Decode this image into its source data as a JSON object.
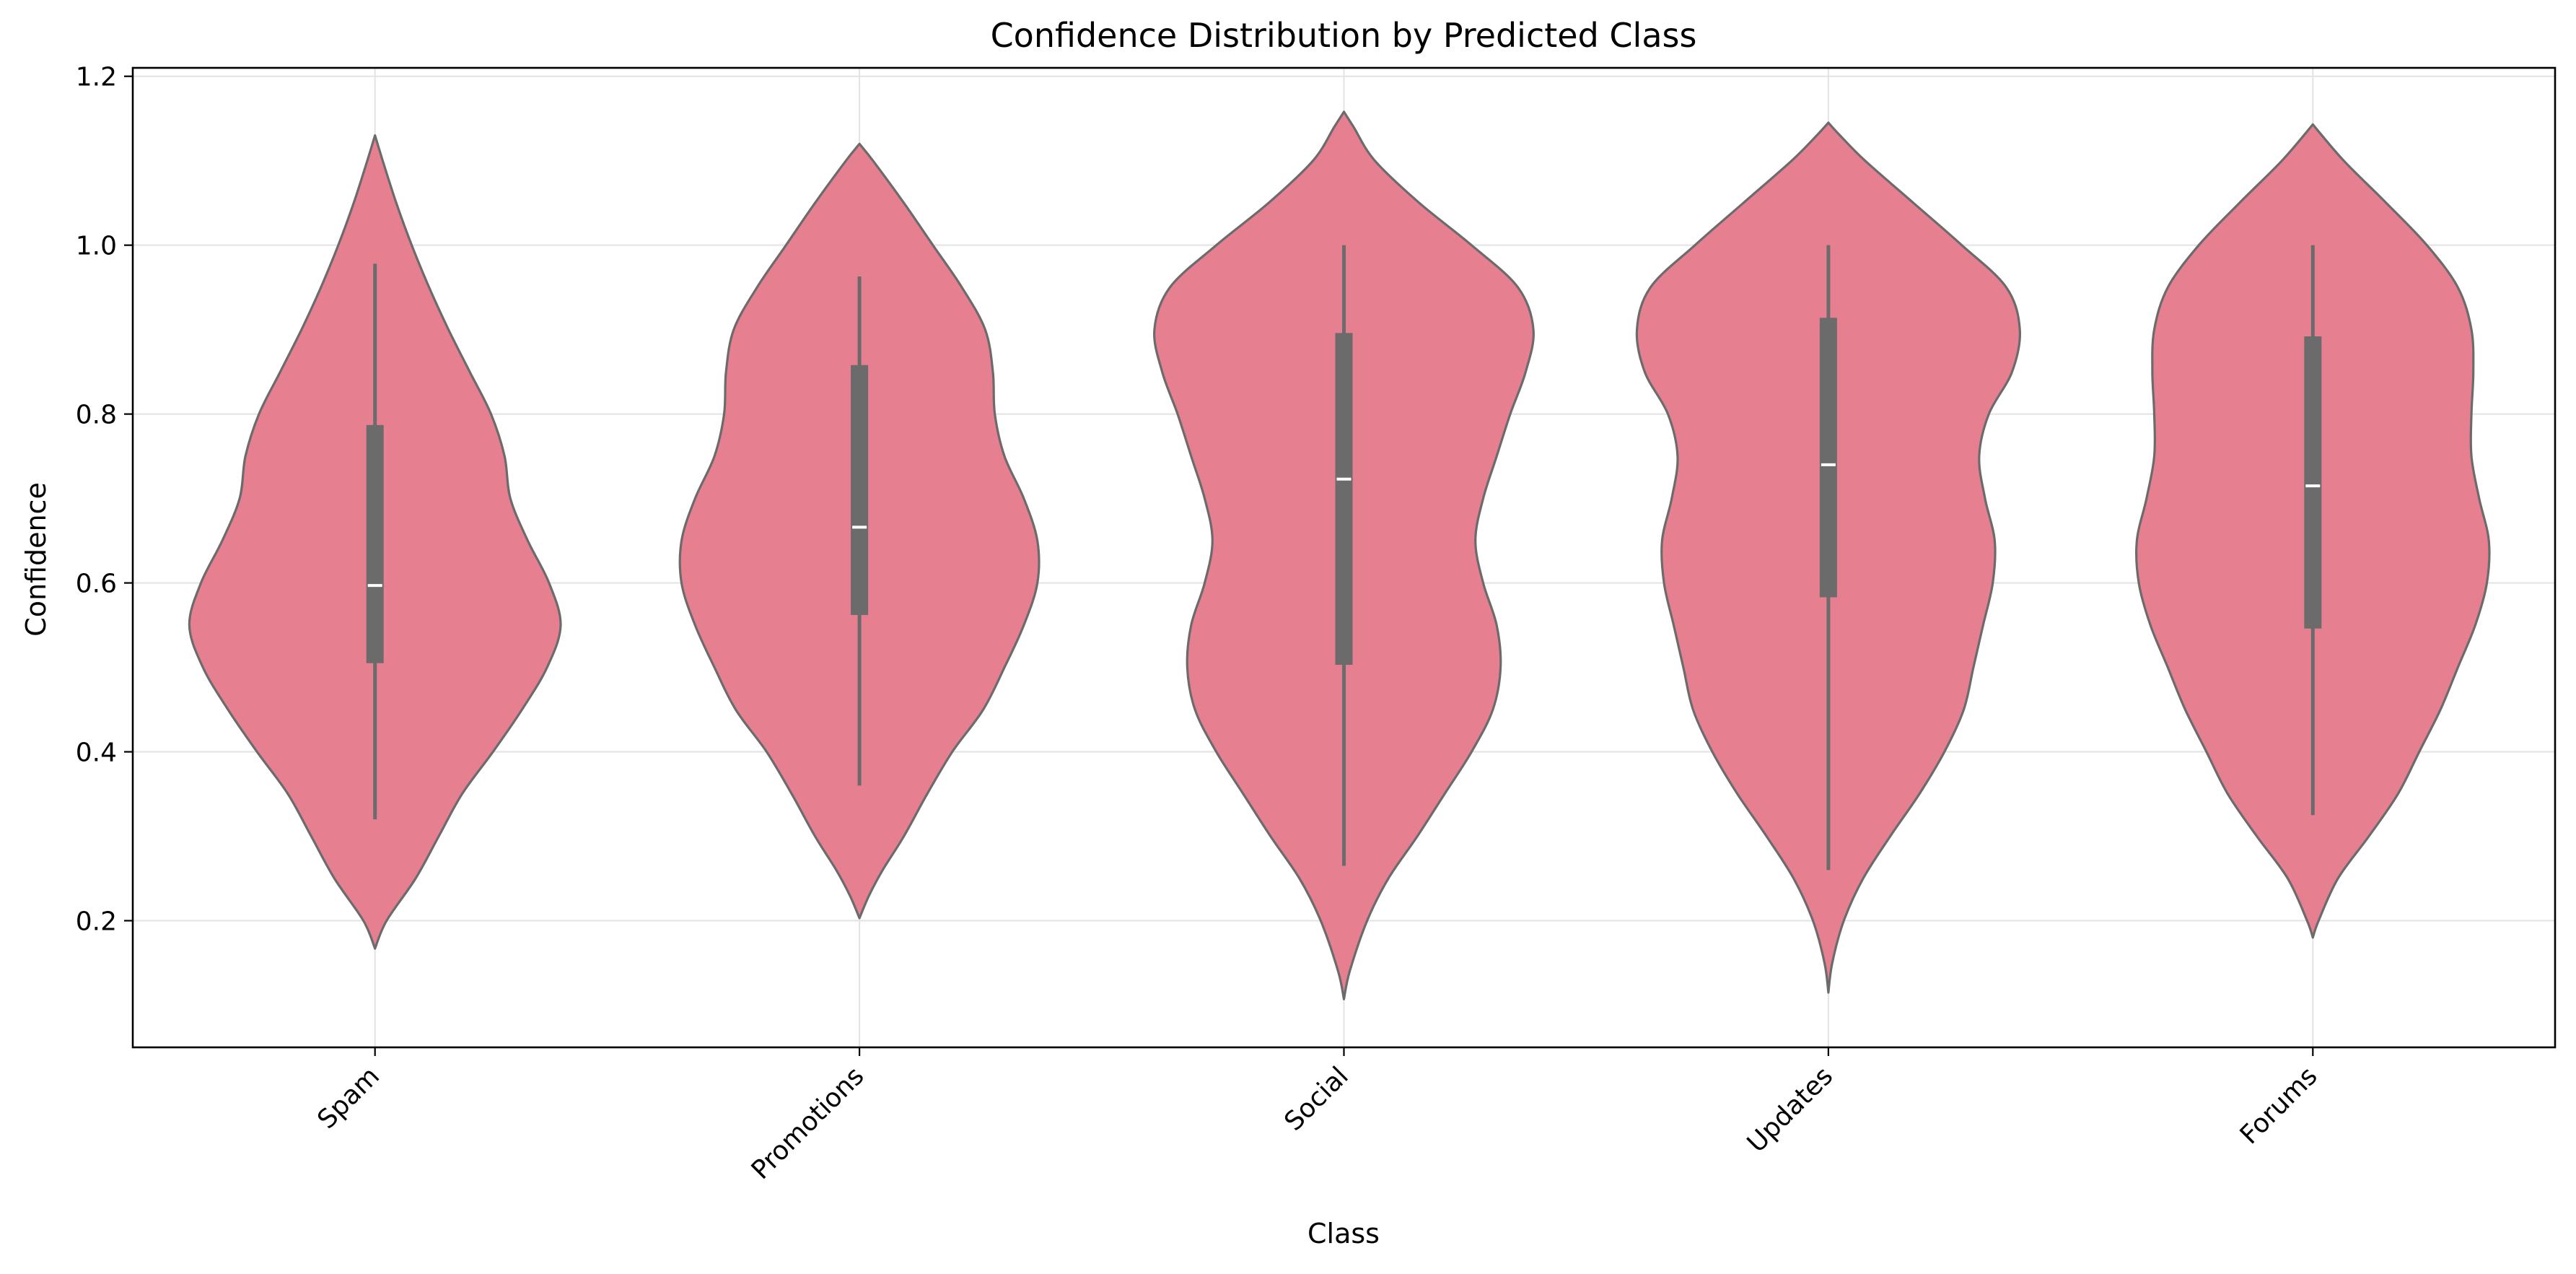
{
  "chart_data": {
    "type": "violin",
    "title": "Confidence Distribution by Predicted Class",
    "xlabel": "Class",
    "ylabel": "Confidence",
    "ylim": [
      0.05,
      1.21
    ],
    "yticks": [
      0.2,
      0.4,
      0.6,
      0.8,
      1.0,
      1.2
    ],
    "ytick_labels": [
      "0.2",
      "0.4",
      "0.6",
      "0.8",
      "1.0",
      "1.2"
    ],
    "grid": true,
    "xtick_rotation_deg": 45,
    "colors": {
      "fill": "#e67f90",
      "edge": "#6b6b6b",
      "box": "#6b6b6b",
      "median": "#ffffff"
    },
    "categories": [
      "Spam",
      "Promotions",
      "Social",
      "Updates",
      "Forums"
    ],
    "series": [
      {
        "label": "Spam",
        "box": {
          "whisker_low": 0.32,
          "q1": 0.505,
          "median": 0.597,
          "q3": 0.787,
          "whisker_high": 0.978
        },
        "density": {
          "y": [
            0.167,
            0.2,
            0.25,
            0.3,
            0.35,
            0.4,
            0.45,
            0.5,
            0.55,
            0.6,
            0.65,
            0.7,
            0.75,
            0.8,
            0.85,
            0.9,
            0.95,
            1.0,
            1.05,
            1.1,
            1.13
          ],
          "width": [
            0.0,
            0.06,
            0.21,
            0.33,
            0.45,
            0.61,
            0.76,
            0.89,
            0.96,
            0.9,
            0.79,
            0.7,
            0.67,
            0.6,
            0.49,
            0.38,
            0.28,
            0.19,
            0.11,
            0.04,
            0.0
          ]
        }
      },
      {
        "label": "Promotions",
        "box": {
          "whisker_low": 0.36,
          "q1": 0.562,
          "median": 0.666,
          "q3": 0.858,
          "whisker_high": 0.963
        },
        "density": {
          "y": [
            0.203,
            0.23,
            0.26,
            0.3,
            0.35,
            0.4,
            0.45,
            0.5,
            0.55,
            0.6,
            0.65,
            0.7,
            0.75,
            0.8,
            0.85,
            0.9,
            0.95,
            1.0,
            1.05,
            1.1,
            1.12
          ],
          "width": [
            0.0,
            0.05,
            0.12,
            0.23,
            0.35,
            0.48,
            0.64,
            0.75,
            0.85,
            0.92,
            0.92,
            0.85,
            0.75,
            0.7,
            0.69,
            0.65,
            0.53,
            0.38,
            0.23,
            0.07,
            0.0
          ]
        }
      },
      {
        "label": "Social",
        "box": {
          "whisker_low": 0.265,
          "q1": 0.503,
          "median": 0.723,
          "q3": 0.896,
          "whisker_high": 1.0
        },
        "density": {
          "y": [
            0.107,
            0.14,
            0.2,
            0.25,
            0.3,
            0.35,
            0.4,
            0.45,
            0.5,
            0.55,
            0.6,
            0.65,
            0.7,
            0.75,
            0.8,
            0.85,
            0.9,
            0.95,
            1.0,
            1.05,
            1.1,
            1.14,
            1.158
          ],
          "width": [
            0.0,
            0.03,
            0.12,
            0.23,
            0.38,
            0.52,
            0.66,
            0.77,
            0.81,
            0.79,
            0.72,
            0.68,
            0.72,
            0.79,
            0.86,
            0.94,
            0.98,
            0.9,
            0.66,
            0.39,
            0.16,
            0.05,
            0.0
          ]
        }
      },
      {
        "label": "Updates",
        "box": {
          "whisker_low": 0.26,
          "q1": 0.583,
          "median": 0.74,
          "q3": 0.914,
          "whisker_high": 1.0
        },
        "density": {
          "y": [
            0.115,
            0.15,
            0.2,
            0.25,
            0.3,
            0.35,
            0.4,
            0.45,
            0.5,
            0.55,
            0.6,
            0.65,
            0.7,
            0.75,
            0.8,
            0.85,
            0.9,
            0.95,
            1.0,
            1.05,
            1.1,
            1.13,
            1.145
          ],
          "width": [
            0.0,
            0.02,
            0.08,
            0.18,
            0.32,
            0.47,
            0.6,
            0.7,
            0.75,
            0.8,
            0.85,
            0.86,
            0.81,
            0.78,
            0.83,
            0.95,
            0.99,
            0.92,
            0.69,
            0.44,
            0.19,
            0.06,
            0.0
          ]
        }
      },
      {
        "label": "Forums",
        "box": {
          "whisker_low": 0.325,
          "q1": 0.546,
          "median": 0.715,
          "q3": 0.892,
          "whisker_high": 1.0
        },
        "density": {
          "y": [
            0.18,
            0.2,
            0.25,
            0.3,
            0.35,
            0.4,
            0.45,
            0.5,
            0.55,
            0.6,
            0.65,
            0.7,
            0.75,
            0.8,
            0.85,
            0.9,
            0.95,
            1.0,
            1.05,
            1.1,
            1.143
          ],
          "width": [
            0.0,
            0.03,
            0.13,
            0.29,
            0.44,
            0.55,
            0.66,
            0.75,
            0.84,
            0.9,
            0.91,
            0.86,
            0.82,
            0.82,
            0.83,
            0.82,
            0.75,
            0.59,
            0.38,
            0.16,
            0.0
          ]
        }
      }
    ]
  }
}
